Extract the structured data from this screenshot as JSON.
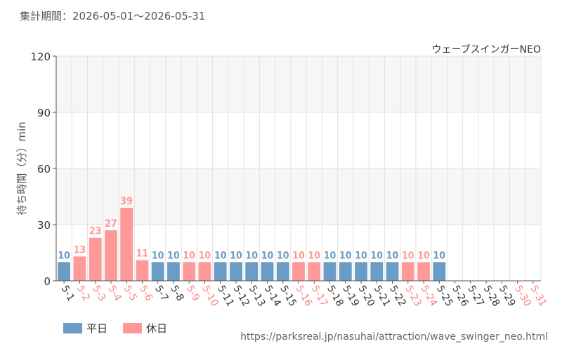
{
  "header": {
    "period": "集計期間：2026-05-01～2026-05-31"
  },
  "footer": {
    "url": "https://parksreal.jp/nasuhai/attraction/wave_swinger_neo.html"
  },
  "chart_data": {
    "type": "bar",
    "title": "ウェーブスインガーNEO",
    "xlabel": "",
    "ylabel": "待ち時間（分）min",
    "ylim": [
      0,
      120
    ],
    "yticks": [
      0,
      30,
      60,
      90,
      120
    ],
    "grid": true,
    "legend_position": "bottom-left",
    "colors": {
      "weekday": "#6a9cc5",
      "holiday": "#ff9999"
    },
    "legend": [
      {
        "key": "weekday",
        "label": "平日"
      },
      {
        "key": "holiday",
        "label": "休日"
      }
    ],
    "categories": [
      "5-1",
      "5-2",
      "5-3",
      "5-4",
      "5-5",
      "5-6",
      "5-7",
      "5-8",
      "5-9",
      "5-10",
      "5-11",
      "5-12",
      "5-13",
      "5-14",
      "5-15",
      "5-16",
      "5-17",
      "5-18",
      "5-19",
      "5-20",
      "5-21",
      "5-22",
      "5-23",
      "5-24",
      "5-25",
      "5-26",
      "5-27",
      "5-28",
      "5-29",
      "5-30",
      "5-31"
    ],
    "values": [
      10,
      13,
      23,
      27,
      39,
      11,
      10,
      10,
      10,
      10,
      10,
      10,
      10,
      10,
      10,
      10,
      10,
      10,
      10,
      10,
      10,
      10,
      10,
      10,
      10,
      null,
      null,
      null,
      null,
      null,
      null
    ],
    "day_type": [
      "weekday",
      "holiday",
      "holiday",
      "holiday",
      "holiday",
      "holiday",
      "weekday",
      "weekday",
      "holiday",
      "holiday",
      "weekday",
      "weekday",
      "weekday",
      "weekday",
      "weekday",
      "holiday",
      "holiday",
      "weekday",
      "weekday",
      "weekday",
      "weekday",
      "weekday",
      "holiday",
      "holiday",
      "weekday",
      "weekday",
      "weekday",
      "weekday",
      "weekday",
      "holiday",
      "holiday"
    ]
  }
}
